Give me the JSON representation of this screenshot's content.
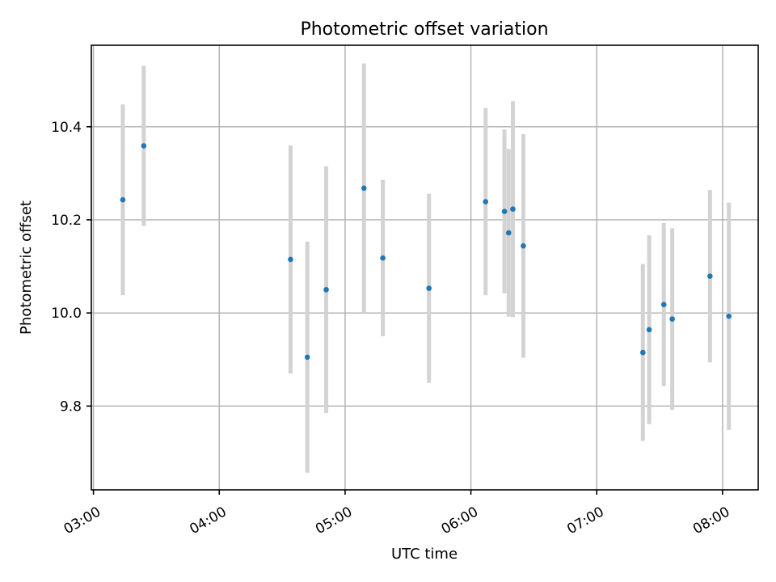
{
  "chart_data": {
    "type": "scatter",
    "title": "Photometric offset variation",
    "xlabel": "UTC time",
    "ylabel": "Photometric offset",
    "x_ticks": [
      "03:00",
      "04:00",
      "05:00",
      "06:00",
      "07:00",
      "08:00"
    ],
    "y_ticks": [
      "9.8",
      "10.0",
      "10.2",
      "10.4"
    ],
    "xlim": [
      "02:59",
      "08:17"
    ],
    "ylim": [
      9.62,
      10.575
    ],
    "grid": true,
    "series": [
      {
        "marker_color": "#1f77b4",
        "errorbar_color": "#d3d3d3",
        "points": [
          {
            "x": "03:14",
            "y": 10.243,
            "err": 0.205
          },
          {
            "x": "03:24",
            "y": 10.359,
            "err": 0.172
          },
          {
            "x": "04:34",
            "y": 10.115,
            "err": 0.245
          },
          {
            "x": "04:42",
            "y": 9.905,
            "err": 0.248
          },
          {
            "x": "04:51",
            "y": 10.05,
            "err": 0.265
          },
          {
            "x": "05:09",
            "y": 10.268,
            "err": 0.268
          },
          {
            "x": "05:18",
            "y": 10.118,
            "err": 0.168
          },
          {
            "x": "05:40",
            "y": 10.053,
            "err": 0.203
          },
          {
            "x": "06:07",
            "y": 10.239,
            "err": 0.201
          },
          {
            "x": "06:16",
            "y": 10.218,
            "err": 0.176
          },
          {
            "x": "06:18",
            "y": 10.172,
            "err": 0.18
          },
          {
            "x": "06:20",
            "y": 10.223,
            "err": 0.232
          },
          {
            "x": "06:25",
            "y": 10.144,
            "err": 0.24
          },
          {
            "x": "07:22",
            "y": 9.915,
            "err": 0.19
          },
          {
            "x": "07:25",
            "y": 9.964,
            "err": 0.203
          },
          {
            "x": "07:32",
            "y": 10.018,
            "err": 0.175
          },
          {
            "x": "07:36",
            "y": 9.987,
            "err": 0.195
          },
          {
            "x": "07:54",
            "y": 10.079,
            "err": 0.185
          },
          {
            "x": "08:03",
            "y": 9.993,
            "err": 0.244
          }
        ]
      }
    ]
  }
}
